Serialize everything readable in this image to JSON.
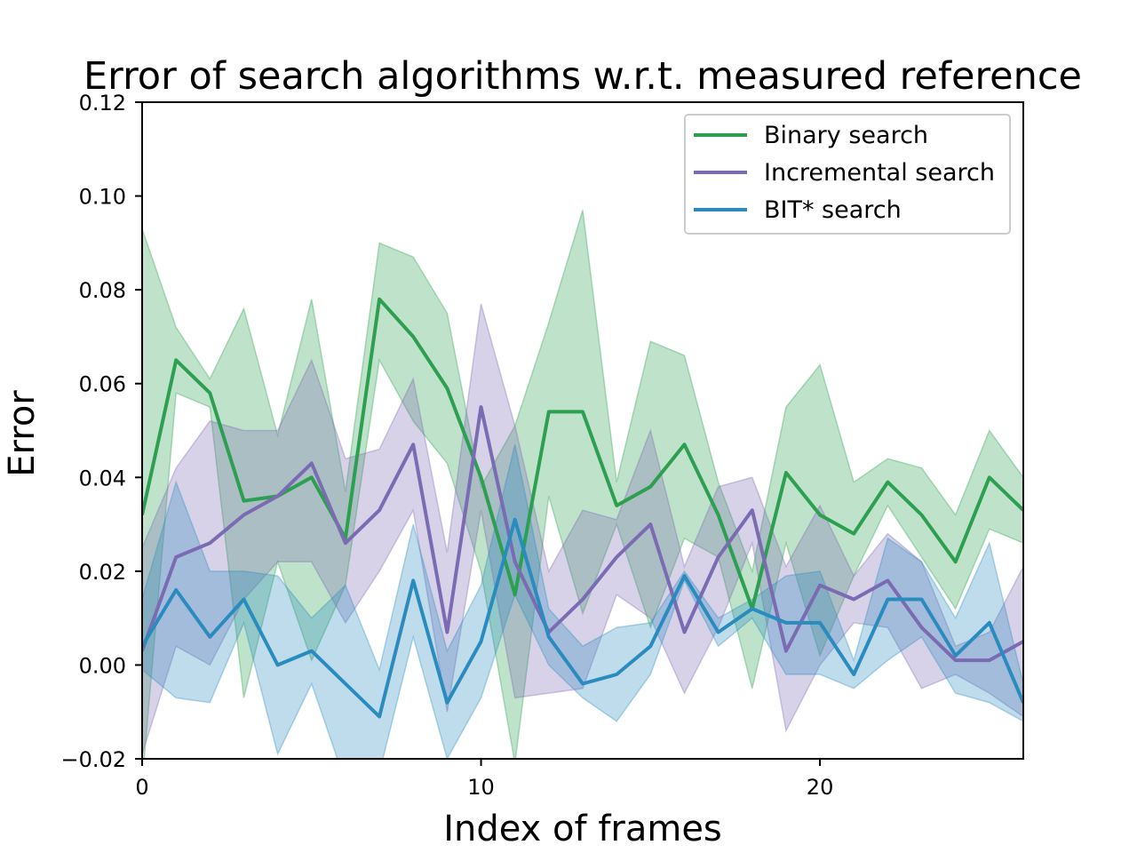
{
  "chart_data": {
    "type": "line",
    "title": "Error of search algorithms w.r.t. measured reference",
    "xlabel": "Index of frames",
    "ylabel": "Error",
    "xlim": [
      0,
      26
    ],
    "ylim": [
      -0.02,
      0.12
    ],
    "xticks": [
      0,
      10,
      20
    ],
    "xtick_labels": [
      "0",
      "10",
      "20"
    ],
    "yticks": [
      -0.02,
      0.0,
      0.02,
      0.04,
      0.06,
      0.08,
      0.1,
      0.12
    ],
    "ytick_labels": [
      "−0.02",
      "0.00",
      "0.02",
      "0.04",
      "0.06",
      "0.08",
      "0.10",
      "0.12"
    ],
    "grid": false,
    "legend_position": "top-right",
    "x": [
      0,
      1,
      2,
      3,
      4,
      5,
      6,
      7,
      8,
      9,
      10,
      11,
      12,
      13,
      14,
      15,
      16,
      17,
      18,
      19,
      20,
      21,
      22,
      23,
      24,
      25,
      26
    ],
    "series": [
      {
        "name": "Binary search",
        "color": "#2ca050",
        "values": [
          0.032,
          0.065,
          0.058,
          0.035,
          0.036,
          0.04,
          0.027,
          0.078,
          0.07,
          0.059,
          0.04,
          0.015,
          0.054,
          0.054,
          0.034,
          0.038,
          0.047,
          0.032,
          0.012,
          0.041,
          0.032,
          0.028,
          0.039,
          0.032,
          0.022,
          0.04,
          0.033
        ],
        "upper": [
          0.093,
          0.072,
          0.061,
          0.076,
          0.049,
          0.078,
          0.037,
          0.09,
          0.087,
          0.075,
          0.038,
          0.051,
          0.073,
          0.097,
          0.039,
          0.069,
          0.066,
          0.039,
          0.02,
          0.055,
          0.064,
          0.039,
          0.044,
          0.042,
          0.032,
          0.05,
          0.04
        ],
        "lower": [
          -0.025,
          0.058,
          0.055,
          -0.007,
          0.022,
          0.001,
          0.017,
          0.065,
          0.052,
          0.043,
          0.02,
          -0.021,
          0.036,
          0.011,
          0.03,
          0.008,
          0.027,
          0.023,
          -0.005,
          0.026,
          0.002,
          0.019,
          0.034,
          0.023,
          0.012,
          0.029,
          0.026
        ]
      },
      {
        "name": "Incremental search",
        "color": "#7a6bb3",
        "values": [
          0.003,
          0.023,
          0.026,
          0.032,
          0.036,
          0.043,
          0.026,
          0.033,
          0.047,
          0.007,
          0.055,
          0.022,
          0.007,
          0.014,
          0.023,
          0.03,
          0.007,
          0.023,
          0.033,
          0.003,
          0.017,
          0.014,
          0.018,
          0.008,
          0.001,
          0.001,
          0.005
        ],
        "upper": [
          0.025,
          0.042,
          0.052,
          0.05,
          0.05,
          0.065,
          0.044,
          0.046,
          0.061,
          0.024,
          0.077,
          0.051,
          0.02,
          0.033,
          0.031,
          0.05,
          0.021,
          0.038,
          0.04,
          0.021,
          0.034,
          0.019,
          0.028,
          0.022,
          0.004,
          0.007,
          0.021
        ],
        "lower": [
          -0.019,
          0.004,
          0.0,
          0.014,
          0.022,
          0.022,
          0.009,
          0.02,
          0.033,
          -0.01,
          0.033,
          -0.007,
          -0.006,
          -0.005,
          0.015,
          0.01,
          -0.006,
          0.008,
          0.026,
          -0.014,
          0.0,
          0.009,
          0.008,
          -0.005,
          -0.002,
          -0.006,
          -0.011
        ]
      },
      {
        "name": "BIT* search",
        "color": "#2a8bbf",
        "values": [
          0.004,
          0.016,
          0.006,
          0.014,
          0.0,
          0.003,
          -0.004,
          -0.011,
          0.018,
          -0.008,
          0.005,
          0.031,
          0.006,
          -0.004,
          -0.002,
          0.004,
          0.019,
          0.007,
          0.012,
          0.009,
          0.009,
          -0.002,
          0.014,
          0.014,
          0.002,
          0.009,
          -0.008
        ],
        "upper": [
          0.014,
          0.039,
          0.02,
          0.02,
          0.019,
          0.01,
          0.017,
          -0.001,
          0.03,
          0.003,
          0.017,
          0.047,
          0.012,
          0.004,
          0.008,
          0.009,
          0.02,
          0.01,
          0.014,
          0.019,
          0.02,
          0.001,
          0.027,
          0.022,
          0.01,
          0.026,
          -0.004
        ],
        "lower": [
          -0.001,
          -0.007,
          -0.008,
          0.009,
          -0.019,
          -0.004,
          -0.025,
          -0.023,
          0.006,
          -0.02,
          -0.007,
          0.015,
          0.0,
          -0.007,
          -0.012,
          -0.002,
          0.018,
          0.004,
          0.01,
          -0.002,
          -0.002,
          -0.005,
          0.001,
          0.006,
          -0.006,
          -0.008,
          -0.012
        ]
      }
    ]
  }
}
